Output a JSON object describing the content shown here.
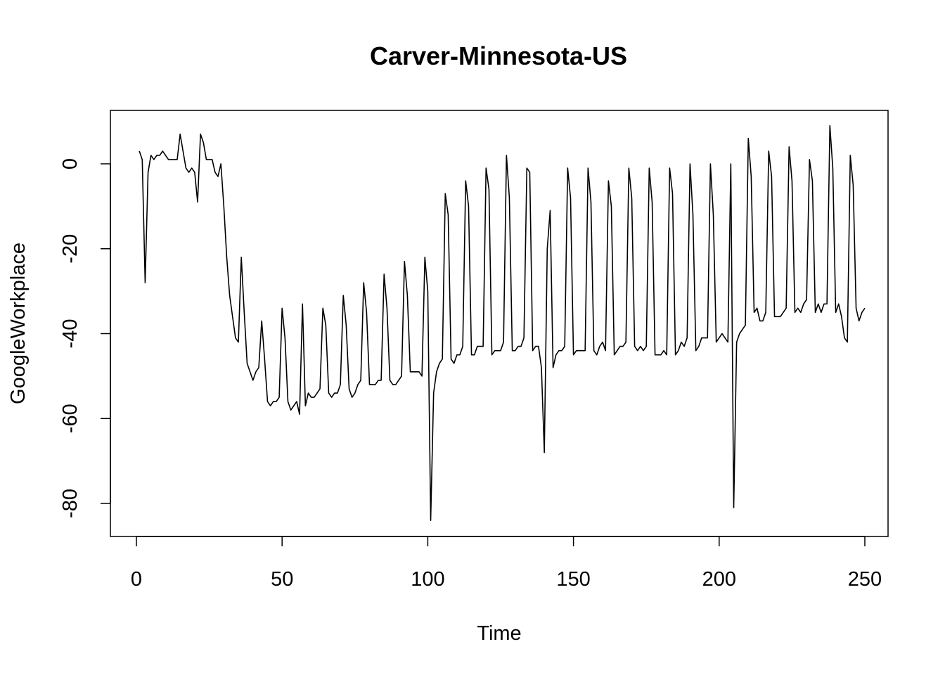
{
  "chart_data": {
    "type": "line",
    "title": "Carver-Minnesota-US",
    "xlabel": "Time",
    "ylabel": "GoogleWorkplace",
    "xlim": [
      0,
      250
    ],
    "ylim": [
      -85,
      10
    ],
    "xticks": [
      0,
      50,
      100,
      150,
      200,
      250
    ],
    "yticks": [
      0,
      -20,
      -40,
      -60,
      -80
    ],
    "series": [
      {
        "name": "GoogleWorkplace",
        "x_start": 1,
        "values": [
          3,
          1,
          -28,
          -2,
          2,
          1,
          2,
          2,
          3,
          2,
          1,
          1,
          1,
          1,
          7,
          3,
          -1,
          -2,
          -1,
          -2,
          -9,
          7,
          5,
          1,
          1,
          1,
          -2,
          -3,
          0,
          -10,
          -22,
          -31,
          -36,
          -41,
          -42,
          -22,
          -35,
          -47,
          -49,
          -51,
          -49,
          -48,
          -37,
          -46,
          -56,
          -57,
          -56,
          -56,
          -55,
          -34,
          -41,
          -56,
          -58,
          -57,
          -56,
          -59,
          -33,
          -57,
          -54,
          -55,
          -55,
          -54,
          -53,
          -34,
          -38,
          -54,
          -55,
          -54,
          -54,
          -52,
          -31,
          -38,
          -53,
          -55,
          -54,
          -52,
          -51,
          -28,
          -35,
          -52,
          -52,
          -52,
          -51,
          -51,
          -26,
          -34,
          -51,
          -52,
          -52,
          -51,
          -50,
          -23,
          -31,
          -49,
          -49,
          -49,
          -49,
          -50,
          -22,
          -30,
          -84,
          -54,
          -49,
          -47,
          -46,
          -7,
          -12,
          -46,
          -47,
          -45,
          -45,
          -43,
          -4,
          -10,
          -45,
          -45,
          -43,
          -43,
          -43,
          -1,
          -6,
          -45,
          -44,
          -44,
          -44,
          -42,
          2,
          -8,
          -44,
          -44,
          -43,
          -43,
          -41,
          -1,
          -2,
          -44,
          -43,
          -43,
          -48,
          -68,
          -20,
          -11,
          -48,
          -45,
          -44,
          -44,
          -43,
          -1,
          -8,
          -45,
          -44,
          -44,
          -44,
          -44,
          -1,
          -9,
          -44,
          -45,
          -43,
          -42,
          -44,
          -4,
          -10,
          -45,
          -44,
          -43,
          -43,
          -42,
          -1,
          -8,
          -43,
          -44,
          -43,
          -44,
          -43,
          -1,
          -9,
          -45,
          -45,
          -45,
          -44,
          -45,
          -1,
          -7,
          -45,
          -44,
          -42,
          -43,
          -41,
          0,
          -12,
          -44,
          -43,
          -41,
          -41,
          -41,
          0,
          -12,
          -42,
          -41,
          -40,
          -41,
          -42,
          0,
          -81,
          -42,
          -40,
          -39,
          -38,
          6,
          -3,
          -35,
          -34,
          -37,
          -37,
          -35,
          3,
          -3,
          -36,
          -36,
          -36,
          -35,
          -34,
          4,
          -4,
          -35,
          -34,
          -35,
          -33,
          -32,
          1,
          -4,
          -35,
          -33,
          -35,
          -33,
          -33,
          9,
          -1,
          -35,
          -33,
          -36,
          -41,
          -42,
          2,
          -5,
          -34,
          -37,
          -35,
          -34
        ]
      }
    ]
  }
}
